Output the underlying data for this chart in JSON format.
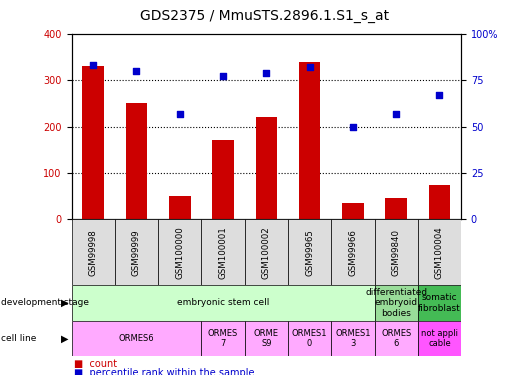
{
  "title": "GDS2375 / MmuSTS.2896.1.S1_s_at",
  "samples": [
    "GSM99998",
    "GSM99999",
    "GSM100000",
    "GSM100001",
    "GSM100002",
    "GSM99965",
    "GSM99966",
    "GSM99840",
    "GSM100004"
  ],
  "counts": [
    330,
    250,
    50,
    170,
    220,
    340,
    35,
    45,
    75
  ],
  "percentiles": [
    83,
    80,
    57,
    77,
    79,
    82,
    50,
    57,
    67
  ],
  "ylim_left": [
    0,
    400
  ],
  "ylim_right": [
    0,
    100
  ],
  "yticks_left": [
    0,
    100,
    200,
    300,
    400
  ],
  "yticks_right": [
    0,
    25,
    50,
    75,
    100
  ],
  "yticklabels_right": [
    "0",
    "25",
    "50",
    "75",
    "100%"
  ],
  "bar_color": "#cc0000",
  "dot_color": "#0000cc",
  "dev_stage_row": {
    "groups": [
      {
        "text": "embryonic stem cell",
        "start": 0,
        "end": 7,
        "color": "#ccffcc"
      },
      {
        "text": "differentiated\nembryoid\nbodies",
        "start": 7,
        "end": 8,
        "color": "#99dd99"
      },
      {
        "text": "somatic\nfibroblast",
        "start": 8,
        "end": 9,
        "color": "#44bb55"
      }
    ]
  },
  "cell_line_row": {
    "groups": [
      {
        "text": "ORMES6",
        "start": 0,
        "end": 3,
        "color": "#ffaaff"
      },
      {
        "text": "ORMES\n7",
        "start": 3,
        "end": 4,
        "color": "#ffaaff"
      },
      {
        "text": "ORME\nS9",
        "start": 4,
        "end": 5,
        "color": "#ffaaff"
      },
      {
        "text": "ORMES1\n0",
        "start": 5,
        "end": 6,
        "color": "#ffaaff"
      },
      {
        "text": "ORMES1\n3",
        "start": 6,
        "end": 7,
        "color": "#ffaaff"
      },
      {
        "text": "ORMES\n6",
        "start": 7,
        "end": 8,
        "color": "#ffaaff"
      },
      {
        "text": "not appli\ncable",
        "start": 8,
        "end": 9,
        "color": "#ff55ff"
      }
    ]
  },
  "legend_count_color": "#cc0000",
  "legend_pct_color": "#0000cc",
  "title_fontsize": 10,
  "tick_fontsize": 7,
  "label_fontsize": 7
}
